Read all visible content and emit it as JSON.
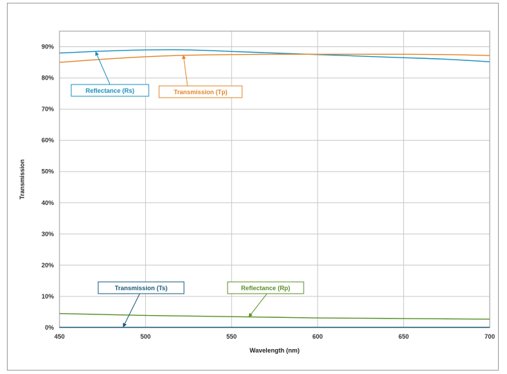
{
  "chart_data": {
    "type": "line",
    "xlabel": "Wavelength (nm)",
    "ylabel": "Transmission",
    "xlim": [
      450,
      700
    ],
    "ylim": [
      0,
      95
    ],
    "x_ticks": [
      450,
      500,
      550,
      600,
      650,
      700
    ],
    "y_ticks": [
      0,
      10,
      20,
      30,
      40,
      50,
      60,
      70,
      80,
      90
    ],
    "y_tick_suffix": "%",
    "grid": true,
    "legend": "none",
    "series": [
      {
        "name": "Reflectance (Rs)",
        "color": "#1a8fc0",
        "x": [
          450,
          475,
          500,
          525,
          550,
          575,
          600,
          625,
          650,
          675,
          700
        ],
        "y": [
          88.0,
          88.6,
          89.0,
          89.0,
          88.5,
          88.0,
          87.5,
          87.0,
          86.5,
          86.0,
          85.2
        ]
      },
      {
        "name": "Transmission (Tp)",
        "color": "#e0862a",
        "x": [
          450,
          475,
          500,
          525,
          550,
          575,
          600,
          625,
          650,
          675,
          700
        ],
        "y": [
          85.0,
          86.0,
          86.8,
          87.3,
          87.5,
          87.6,
          87.6,
          87.6,
          87.6,
          87.5,
          87.2
        ]
      },
      {
        "name": "Reflectance (Rp)",
        "color": "#5a8f2a",
        "x": [
          450,
          475,
          500,
          525,
          550,
          575,
          600,
          625,
          650,
          675,
          700
        ],
        "y": [
          4.5,
          4.2,
          3.9,
          3.7,
          3.5,
          3.3,
          3.1,
          3.0,
          2.9,
          2.8,
          2.7
        ]
      },
      {
        "name": "Transmission (Ts)",
        "color": "#1a5a7a",
        "x": [
          450,
          475,
          500,
          525,
          550,
          575,
          600,
          625,
          650,
          675,
          700
        ],
        "y": [
          0.1,
          0.1,
          0.1,
          0.1,
          0.1,
          0.1,
          0.1,
          0.1,
          0.1,
          0.1,
          0.1
        ]
      }
    ],
    "annotations": [
      {
        "text": "Reflectance (Rs)",
        "color": "#1a8fc0",
        "target": [
          471,
          88.4
        ]
      },
      {
        "text": "Transmission (Tp)",
        "color": "#e0862a",
        "target": [
          522,
          87.3
        ]
      },
      {
        "text": "Transmission (Ts)",
        "color": "#1a5a7a",
        "target": [
          487,
          0.2
        ]
      },
      {
        "text": "Reflectance (Rp)",
        "color": "#5a8f2a",
        "target": [
          560,
          3.4
        ]
      }
    ]
  }
}
